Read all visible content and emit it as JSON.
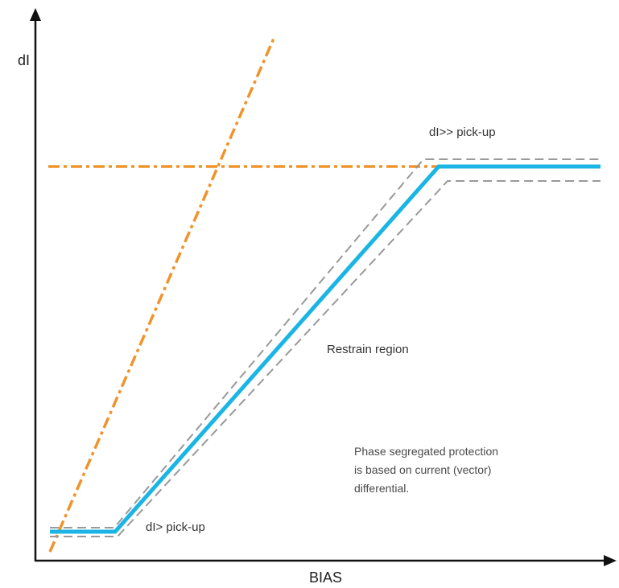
{
  "axes": {
    "y_label": "dI",
    "x_label": "BIAS"
  },
  "labels": {
    "high_pickup": "dI>> pick-up",
    "low_pickup": "dI> pick-up",
    "restrain": "Restrain region"
  },
  "note": {
    "line1": "Phase segregated protection",
    "line2": "is based on current (vector)",
    "line3": "differential."
  },
  "colors": {
    "characteristic": "#1ab5e5",
    "pickup_lines": "#f0932b",
    "tolerance": "#999999",
    "axis": "#111111"
  }
}
